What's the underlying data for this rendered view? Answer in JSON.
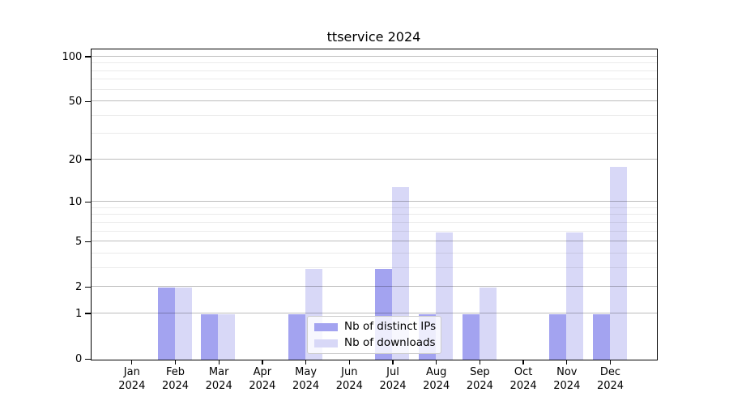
{
  "title": "ttservice 2024",
  "chart_data": {
    "type": "bar",
    "title": "ttservice 2024",
    "categories": [
      "Jan",
      "Feb",
      "Mar",
      "Apr",
      "May",
      "Jun",
      "Jul",
      "Aug",
      "Sep",
      "Oct",
      "Nov",
      "Dec"
    ],
    "year_label": "2024",
    "series": [
      {
        "name": "Nb of distinct IPs",
        "color": "#a3a3f0",
        "values": [
          0,
          2,
          1,
          0,
          1,
          0,
          3,
          1,
          1,
          0,
          1,
          1
        ]
      },
      {
        "name": "Nb of downloads",
        "color": "#d8d8f7",
        "values": [
          0,
          2,
          1,
          0,
          3,
          0,
          13,
          6,
          2,
          0,
          6,
          18
        ]
      }
    ],
    "yscale": "log1p",
    "yticks": [
      0,
      1,
      2,
      5,
      10,
      20,
      50,
      100
    ],
    "yminor": [
      3,
      4,
      6,
      7,
      8,
      9,
      30,
      40,
      60,
      70,
      80,
      90
    ],
    "ylim": [
      0,
      112
    ],
    "grid": true,
    "legend_position": "lower center"
  },
  "legend": {
    "items": [
      {
        "label": "Nb of distinct IPs",
        "color": "#a3a3f0"
      },
      {
        "label": "Nb of downloads",
        "color": "#d8d8f7"
      }
    ]
  }
}
